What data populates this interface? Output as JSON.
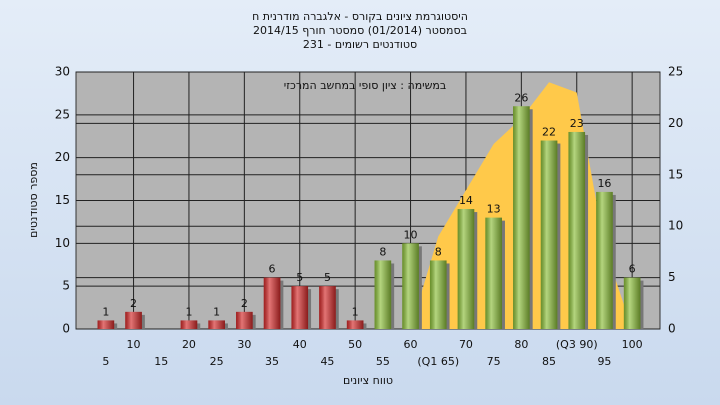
{
  "chart_data": {
    "type": "bar",
    "title": [
      "היסטוגרמת ציונים בקורס - אלגברה מודרנית ח",
      "בסמסטר  (01/2014)  סמסטר חורף 2014/15",
      "סטודנטים רשומים - 231"
    ],
    "annotation": "במשימה : ציון סופי במחשב המרכזי",
    "xlabel": "טווח ציונים",
    "ylabel": "מספר סטודנטים",
    "categories": [
      "5",
      "10",
      "15",
      "20",
      "25",
      "30",
      "35",
      "40",
      "45",
      "50",
      "55",
      "60",
      "(Q1 65)",
      "70",
      "75",
      "80",
      "85",
      "(Q3 90)",
      "95",
      "100"
    ],
    "values": [
      1,
      2,
      0,
      1,
      1,
      2,
      6,
      5,
      5,
      1,
      8,
      10,
      8,
      14,
      13,
      26,
      22,
      23,
      16,
      6
    ],
    "colors": [
      "#d42a2a",
      "#d42a2a",
      "#d42a2a",
      "#d42a2a",
      "#d42a2a",
      "#d42a2a",
      "#d42a2a",
      "#d42a2a",
      "#d42a2a",
      "#d42a2a",
      "#8cbf3a",
      "#8cbf3a",
      "#8cbf3a",
      "#8cbf3a",
      "#8cbf3a",
      "#8cbf3a",
      "#8cbf3a",
      "#8cbf3a",
      "#8cbf3a",
      "#8cbf3a"
    ],
    "area": {
      "axis": "y2",
      "color": "#ffc94a",
      "values": [
        null,
        null,
        null,
        null,
        null,
        null,
        null,
        null,
        null,
        null,
        null,
        0,
        9,
        13.5,
        18,
        20.5,
        24,
        23,
        8,
        0
      ]
    },
    "ylim": [
      0,
      30
    ],
    "yticks": [
      0,
      5,
      10,
      15,
      20,
      25,
      30
    ],
    "y2lim": [
      0,
      25
    ],
    "y2ticks": [
      0,
      5,
      10,
      15,
      20,
      25
    ],
    "grid": true
  }
}
